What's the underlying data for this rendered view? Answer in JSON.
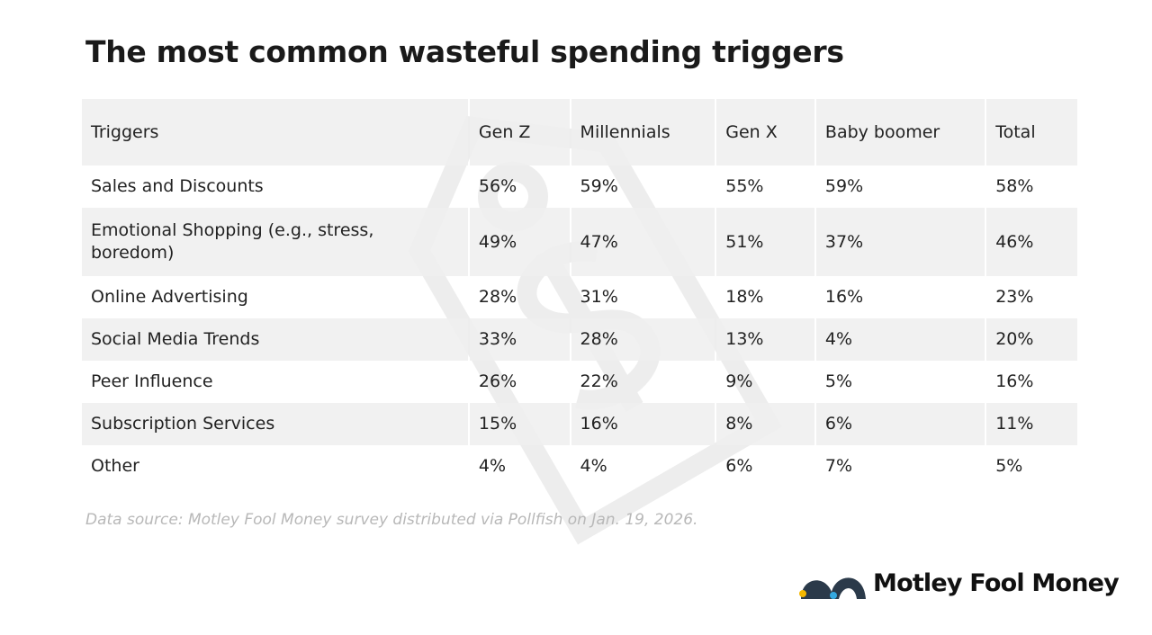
{
  "title": "The most common wasteful spending triggers",
  "table": {
    "header": [
      "Triggers",
      "Gen Z",
      "Millennials",
      "Gen X",
      "Baby boomer",
      "Total"
    ],
    "rows": [
      [
        "Sales and Discounts",
        "56%",
        "59%",
        "55%",
        "59%",
        "58%"
      ],
      [
        "Emotional Shopping (e.g., stress, boredom)",
        "49%",
        "47%",
        "51%",
        "37%",
        "46%"
      ],
      [
        "Online Advertising",
        "28%",
        "31%",
        "18%",
        "16%",
        "23%"
      ],
      [
        "Social Media Trends",
        "33%",
        "28%",
        "13%",
        "4%",
        "20%"
      ],
      [
        "Peer Influence",
        "26%",
        "22%",
        "9%",
        "5%",
        "16%"
      ],
      [
        "Subscription Services",
        "15%",
        "16%",
        "8%",
        "6%",
        "11%"
      ],
      [
        "Other",
        "4%",
        "4%",
        "6%",
        "7%",
        "5%"
      ]
    ]
  },
  "source": "Data source: Motley Fool Money survey distributed via Pollfish on Jan. 19, 2026.",
  "logo": "Motley Fool Money"
}
